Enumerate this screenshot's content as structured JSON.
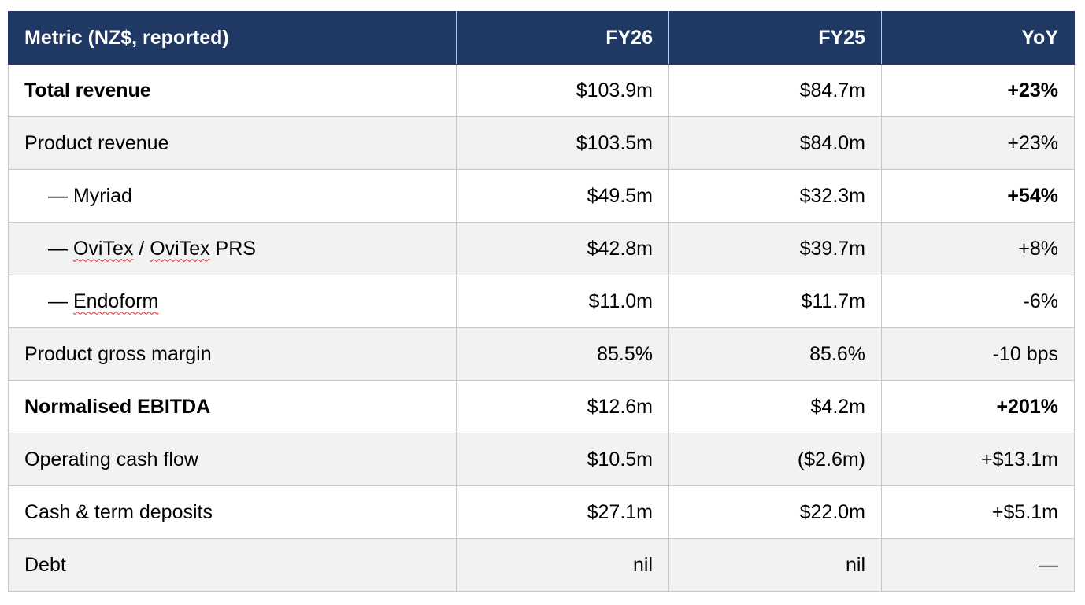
{
  "table": {
    "headers": {
      "metric": "Metric (NZ$, reported)",
      "fy26": "FY26",
      "fy25": "FY25",
      "yoy": "YoY"
    },
    "rows": [
      {
        "metric": "Total revenue",
        "fy26": "$103.9m",
        "fy25": "$84.7m",
        "yoy": "+23%"
      },
      {
        "metric": "Product revenue",
        "fy26": "$103.5m",
        "fy25": "$84.0m",
        "yoy": "+23%"
      },
      {
        "dash": "— ",
        "metric": "Myriad",
        "fy26": "$49.5m",
        "fy25": "$32.3m",
        "yoy": "+54%"
      },
      {
        "dash": "— ",
        "metric_a": "OviTex",
        "sep": " / ",
        "metric_b": "OviTex",
        "metric_c": " PRS",
        "fy26": "$42.8m",
        "fy25": "$39.7m",
        "yoy": "+8%"
      },
      {
        "dash": "— ",
        "metric": "Endoform",
        "fy26": "$11.0m",
        "fy25": "$11.7m",
        "yoy": "-6%"
      },
      {
        "metric": "Product gross margin",
        "fy26": "85.5%",
        "fy25": "85.6%",
        "yoy": "-10 bps"
      },
      {
        "metric": "Normalised EBITDA",
        "fy26": "$12.6m",
        "fy25": "$4.2m",
        "yoy": "+201%"
      },
      {
        "metric": "Operating cash flow",
        "fy26": "$10.5m",
        "fy25": "($2.6m)",
        "yoy": "+$13.1m"
      },
      {
        "metric": "Cash & term deposits",
        "fy26": "$27.1m",
        "fy25": "$22.0m",
        "yoy": "+$5.1m"
      },
      {
        "metric": "Debt",
        "fy26": "nil",
        "fy25": "nil",
        "yoy": "—"
      }
    ]
  },
  "colors": {
    "header_bg": "#1f3864",
    "header_text": "#ffffff",
    "shaded_row": "#f2f2f2",
    "grid": "#c8c8c8",
    "spellcheck_underline": "#e02020"
  }
}
